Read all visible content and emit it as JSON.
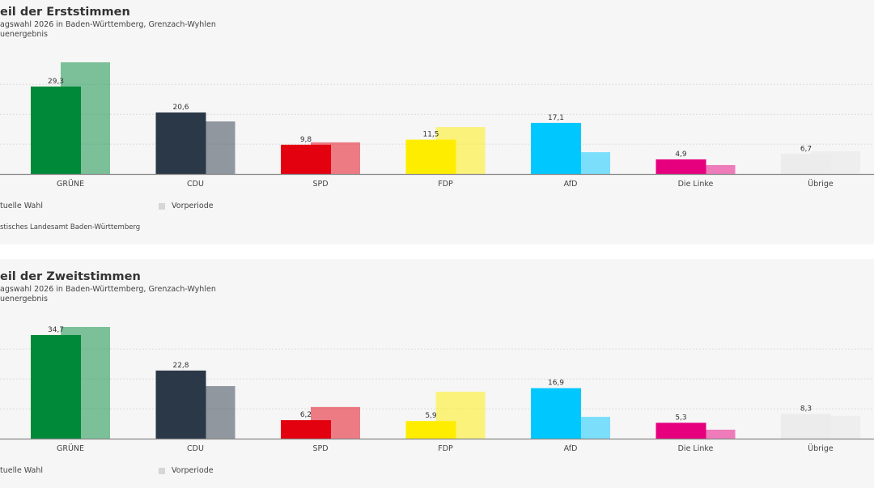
{
  "chart_data": [
    {
      "type": "bar",
      "title": "eil der Erststimmen",
      "subtitle": "agswahl 2026 in Baden-Württemberg, Grenzach-Wyhlen",
      "subtitle2": "uenergebnis",
      "categories": [
        "GRÜNE",
        "CDU",
        "SPD",
        "FDP",
        "AfD",
        "Die Linke",
        "Übrige"
      ],
      "colors": [
        "#008939",
        "#2b3847",
        "#e3000f",
        "#ffed00",
        "#00c8ff",
        "#e6007e",
        "#ececec"
      ],
      "series": [
        {
          "name": "tuelle Wahl",
          "values": [
            29.3,
            20.6,
            9.8,
            11.5,
            17.1,
            4.9,
            6.7
          ],
          "labels": [
            "29,3",
            "20,6",
            "9,8",
            "11,5",
            "17,1",
            "4,9",
            "6,7"
          ]
        },
        {
          "name": "Vorperiode",
          "values": [
            37.4,
            17.6,
            10.6,
            15.7,
            7.3,
            3.0,
            7.6
          ]
        }
      ],
      "ylim": [
        0,
        40
      ],
      "grid": true,
      "legend": "bottom",
      "source": "stisches Landesamt Baden-Württemberg"
    },
    {
      "type": "bar",
      "title": "eil der Zweitstimmen",
      "subtitle": "agswahl 2026 in Baden-Württemberg, Grenzach-Wyhlen",
      "subtitle2": "uenergebnis",
      "categories": [
        "GRÜNE",
        "CDU",
        "SPD",
        "FDP",
        "AfD",
        "Die Linke",
        "Übrige"
      ],
      "colors": [
        "#008939",
        "#2b3847",
        "#e3000f",
        "#ffed00",
        "#00c8ff",
        "#e6007e",
        "#ececec"
      ],
      "series": [
        {
          "name": "tuelle Wahl",
          "values": [
            34.7,
            22.8,
            6.2,
            5.9,
            16.9,
            5.3,
            8.3
          ],
          "labels": [
            "34,7",
            "22,8",
            "6,2",
            "5,9",
            "16,9",
            "5,3",
            "8,3"
          ]
        },
        {
          "name": "Vorperiode",
          "values": [
            37.4,
            17.6,
            10.6,
            15.7,
            7.3,
            3.0,
            7.6
          ]
        }
      ],
      "ylim": [
        0,
        40
      ],
      "grid": true,
      "legend": "bottom"
    }
  ]
}
